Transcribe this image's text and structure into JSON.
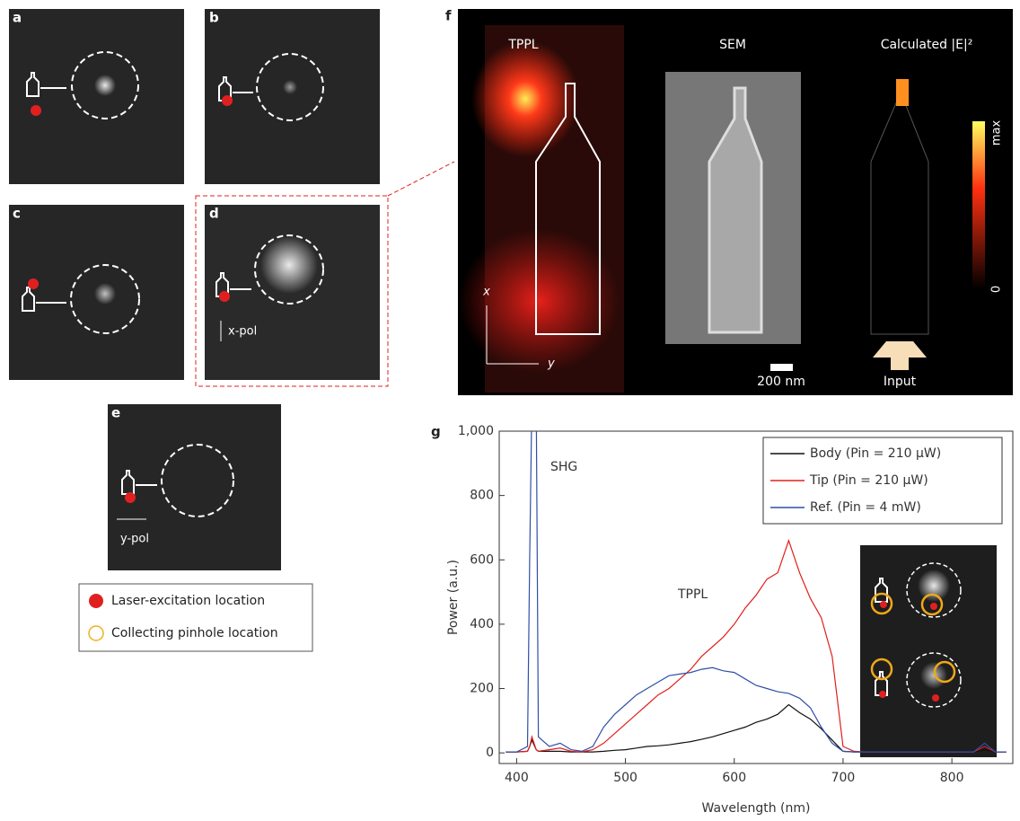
{
  "panel_labels": [
    "a",
    "b",
    "c",
    "d",
    "e",
    "f",
    "g"
  ],
  "polarizations": [
    "x-pol",
    "y-pol"
  ],
  "legend": [
    "Laser-excitation location",
    "Collecting pinhole location"
  ],
  "panel_f": {
    "titles": [
      "TPPL",
      "SEM",
      "Calculated |E|²"
    ],
    "colorbar": [
      "max",
      "0"
    ],
    "axes": [
      "x",
      "y"
    ],
    "scale_bar": "200 nm",
    "input": "Input"
  },
  "chart_data": {
    "type": "line",
    "xlabel": "Wavelength (nm)",
    "ylabel": "Power (a.u.)",
    "annotations": [
      "SHG",
      "TPPL"
    ],
    "x": [
      390,
      400,
      410,
      412,
      414,
      418,
      420,
      430,
      440,
      450,
      460,
      470,
      480,
      490,
      500,
      510,
      520,
      530,
      540,
      550,
      560,
      570,
      580,
      590,
      600,
      610,
      620,
      630,
      640,
      650,
      660,
      670,
      680,
      690,
      700,
      710,
      720,
      730,
      740,
      750,
      760,
      770,
      780,
      790,
      800,
      810,
      820,
      830,
      840,
      850
    ],
    "series": [
      {
        "name": "Body (Pin = 210 μW)",
        "color": "#111111",
        "values": [
          3,
          3,
          5,
          20,
          40,
          10,
          5,
          5,
          5,
          3,
          3,
          3,
          5,
          8,
          10,
          15,
          20,
          22,
          25,
          30,
          35,
          42,
          50,
          60,
          70,
          80,
          95,
          105,
          120,
          150,
          125,
          105,
          75,
          40,
          5,
          3,
          3,
          3,
          3,
          3,
          3,
          3,
          3,
          3,
          3,
          3,
          3,
          10,
          3,
          3
        ]
      },
      {
        "name": "Tip (Pin = 210 μW)",
        "color": "#e0201b",
        "values": [
          3,
          3,
          5,
          20,
          50,
          10,
          5,
          10,
          15,
          5,
          3,
          10,
          30,
          60,
          90,
          120,
          150,
          180,
          200,
          230,
          260,
          300,
          330,
          360,
          400,
          450,
          490,
          540,
          560,
          660,
          560,
          480,
          420,
          300,
          20,
          5,
          3,
          3,
          3,
          3,
          3,
          3,
          3,
          3,
          3,
          3,
          3,
          20,
          3,
          3
        ]
      },
      {
        "name": "Ref. (Pin = 4 mW)",
        "color": "#2f4fa8",
        "values": [
          3,
          3,
          20,
          600,
          1100,
          1100,
          50,
          20,
          30,
          10,
          5,
          20,
          80,
          120,
          150,
          180,
          200,
          220,
          240,
          245,
          250,
          260,
          265,
          255,
          250,
          230,
          210,
          200,
          190,
          185,
          170,
          140,
          80,
          30,
          5,
          3,
          3,
          3,
          3,
          3,
          3,
          3,
          3,
          3,
          3,
          3,
          3,
          30,
          3,
          3
        ]
      }
    ],
    "xlim": [
      384,
      856
    ],
    "ylim": [
      -33,
      1000
    ],
    "xticks": [
      400,
      500,
      600,
      700,
      800
    ],
    "yticks": [
      0,
      200,
      400,
      600,
      800,
      {
        "value": 1000,
        "label": "1,000"
      }
    ],
    "legend": "upper right"
  }
}
